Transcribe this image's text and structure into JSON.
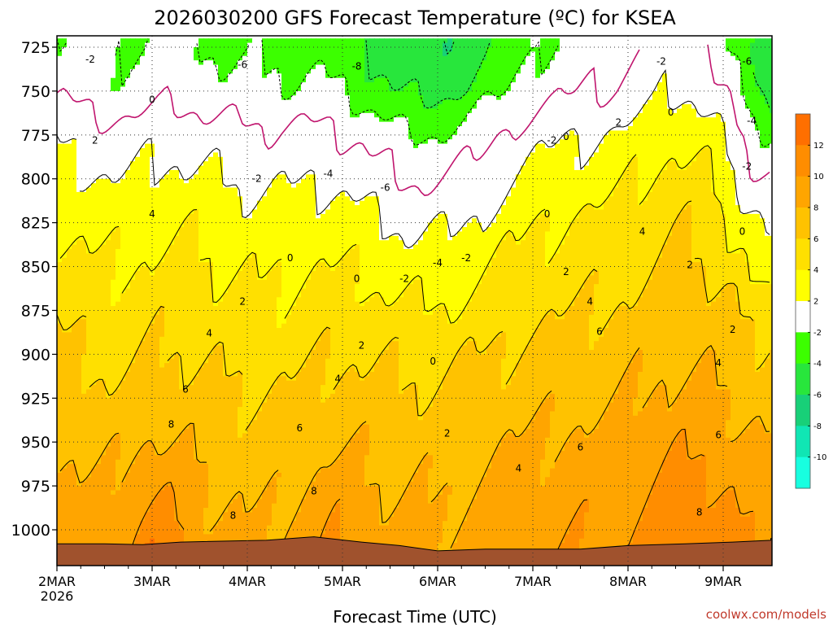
{
  "chart_data": {
    "type": "heatmap",
    "title": "2026030200 GFS Forecast Temperature (ºC) for KSEA",
    "xlabel": "Forecast Time (UTC)",
    "x_ticks": [
      "2MAR",
      "3MAR",
      "4MAR",
      "5MAR",
      "6MAR",
      "7MAR",
      "8MAR",
      "9MAR"
    ],
    "x_year": "2026",
    "ylabel": "",
    "y_ticks": [
      "725",
      "750",
      "775",
      "800",
      "825",
      "850",
      "875",
      "900",
      "925",
      "950",
      "975",
      "1000"
    ],
    "y_values": [
      725,
      750,
      775,
      800,
      825,
      850,
      875,
      900,
      925,
      950,
      975,
      1000
    ],
    "ylim": [
      1020,
      720
    ],
    "colorbar": {
      "levels": [
        "12",
        "10",
        "8",
        "6",
        "4",
        "2",
        "-2",
        "-4",
        "-6",
        "-8",
        "-10"
      ],
      "colors": [
        "#ff6f00",
        "#ff8d00",
        "#ffa500",
        "#ffc200",
        "#ffe000",
        "#ffff00",
        "#ffffff",
        "#3cff00",
        "#28e63c",
        "#18d078",
        "#10e6b4",
        "#18ffe0"
      ]
    },
    "contour_labels": [
      {
        "t": 0.35,
        "p": 732,
        "v": "-2"
      },
      {
        "t": 1.0,
        "p": 755,
        "v": "0"
      },
      {
        "t": 0.4,
        "p": 778,
        "v": "2"
      },
      {
        "t": 1.95,
        "p": 735,
        "v": "-6"
      },
      {
        "t": 3.15,
        "p": 736,
        "v": "-8"
      },
      {
        "t": 2.85,
        "p": 797,
        "v": "-4"
      },
      {
        "t": 2.1,
        "p": 800,
        "v": "-2"
      },
      {
        "t": 3.45,
        "p": 805,
        "v": "-6"
      },
      {
        "t": 2.45,
        "p": 845,
        "v": "0"
      },
      {
        "t": 1.95,
        "p": 870,
        "v": "2"
      },
      {
        "t": 1.0,
        "p": 820,
        "v": "4"
      },
      {
        "t": 1.6,
        "p": 888,
        "v": "4"
      },
      {
        "t": 1.35,
        "p": 920,
        "v": "6"
      },
      {
        "t": 1.2,
        "p": 940,
        "v": "8"
      },
      {
        "t": 1.85,
        "p": 992,
        "v": "8"
      },
      {
        "t": 2.55,
        "p": 942,
        "v": "6"
      },
      {
        "t": 2.7,
        "p": 978,
        "v": "8"
      },
      {
        "t": 2.95,
        "p": 914,
        "v": "4"
      },
      {
        "t": 3.15,
        "p": 857,
        "v": "0"
      },
      {
        "t": 3.2,
        "p": 895,
        "v": "2"
      },
      {
        "t": 3.65,
        "p": 857,
        "v": "-2"
      },
      {
        "t": 4.0,
        "p": 848,
        "v": "-4"
      },
      {
        "t": 4.3,
        "p": 845,
        "v": "-2"
      },
      {
        "t": 3.95,
        "p": 904,
        "v": "0"
      },
      {
        "t": 4.1,
        "p": 945,
        "v": "2"
      },
      {
        "t": 4.85,
        "p": 965,
        "v": "4"
      },
      {
        "t": 5.15,
        "p": 820,
        "v": "0"
      },
      {
        "t": 5.35,
        "p": 853,
        "v": "2"
      },
      {
        "t": 5.2,
        "p": 778,
        "v": "-2"
      },
      {
        "t": 5.35,
        "p": 776,
        "v": "0"
      },
      {
        "t": 5.6,
        "p": 870,
        "v": "4"
      },
      {
        "t": 5.7,
        "p": 887,
        "v": "6"
      },
      {
        "t": 5.9,
        "p": 768,
        "v": "2"
      },
      {
        "t": 6.15,
        "p": 830,
        "v": "4"
      },
      {
        "t": 5.5,
        "p": 953,
        "v": "6"
      },
      {
        "t": 6.45,
        "p": 762,
        "v": "0"
      },
      {
        "t": 6.35,
        "p": 733,
        "v": "-2"
      },
      {
        "t": 6.65,
        "p": 849,
        "v": "2"
      },
      {
        "t": 6.95,
        "p": 905,
        "v": "4"
      },
      {
        "t": 7.1,
        "p": 886,
        "v": "2"
      },
      {
        "t": 6.95,
        "p": 946,
        "v": "6"
      },
      {
        "t": 6.75,
        "p": 990,
        "v": "8"
      },
      {
        "t": 7.2,
        "p": 830,
        "v": "0"
      },
      {
        "t": 7.3,
        "p": 767,
        "v": "-4"
      },
      {
        "t": 7.25,
        "p": 793,
        "v": "-2"
      },
      {
        "t": 7.25,
        "p": 733,
        "v": "-6"
      }
    ]
  },
  "footer": {
    "credit": "coolwx.com/models"
  }
}
